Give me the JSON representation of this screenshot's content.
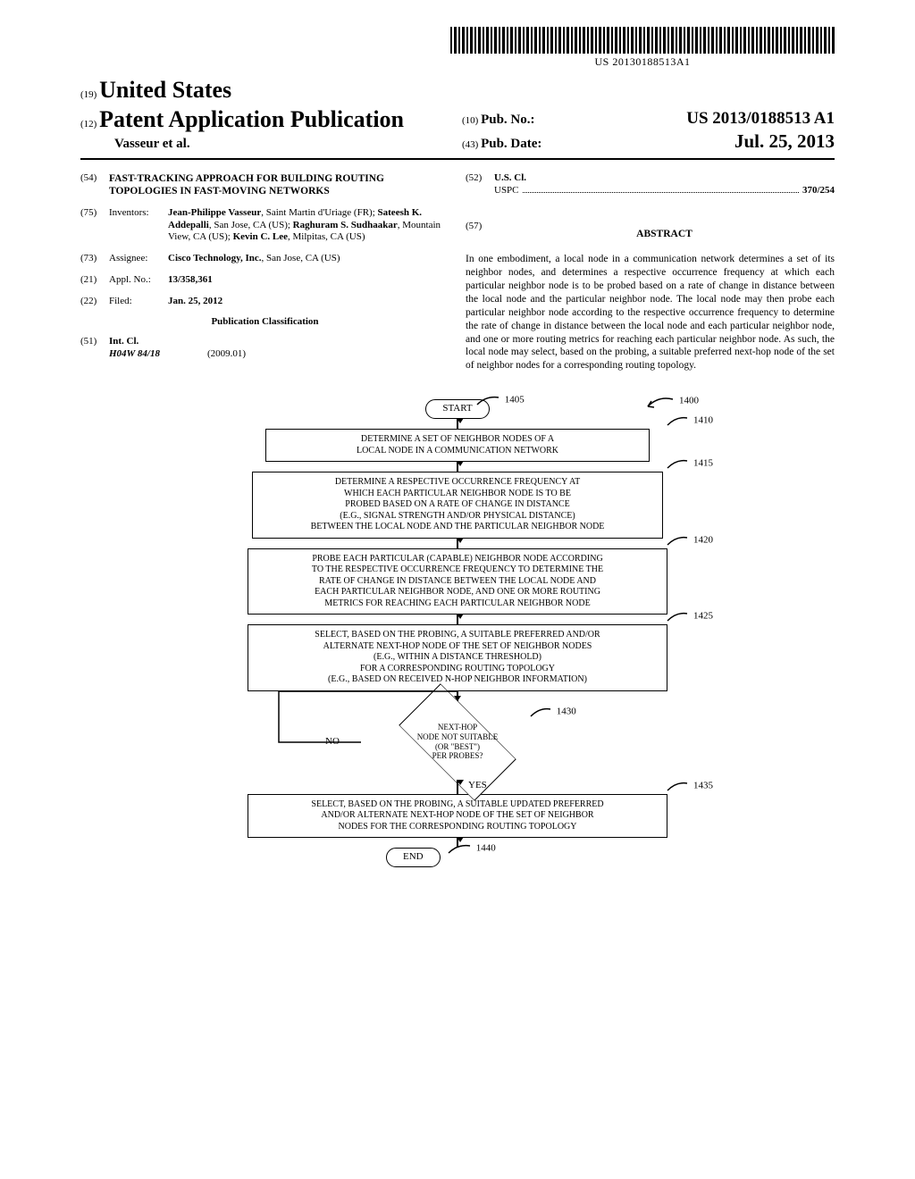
{
  "barcode_text": "US 20130188513A1",
  "header": {
    "country_code": "(19)",
    "country": "United States",
    "pub_code": "(12)",
    "pub_type": "Patent Application Publication",
    "authors": "Vasseur et al.",
    "pubno_code": "(10)",
    "pubno_label": "Pub. No.:",
    "pubno_value": "US 2013/0188513 A1",
    "pubdate_code": "(43)",
    "pubdate_label": "Pub. Date:",
    "pubdate_value": "Jul. 25, 2013"
  },
  "left_col": {
    "item54_code": "(54)",
    "item54_text": "FAST-TRACKING APPROACH FOR BUILDING ROUTING TOPOLOGIES IN FAST-MOVING NETWORKS",
    "item75_code": "(75)",
    "item75_label": "Inventors:",
    "item75_html": "Jean-Philippe Vasseur, Saint Martin d'Uriage (FR); Sateesh K. Addepalli, San Jose, CA (US); Raghuram S. Sudhaakar, Mountain View, CA (US); Kevin C. Lee, Milpitas, CA (US)",
    "item73_code": "(73)",
    "item73_label": "Assignee:",
    "item73_html": "Cisco Technology, Inc., San Jose, CA (US)",
    "item21_code": "(21)",
    "item21_label": "Appl. No.:",
    "item21_value": "13/358,361",
    "item22_code": "(22)",
    "item22_label": "Filed:",
    "item22_value": "Jan. 25, 2012",
    "pub_class": "Publication Classification",
    "item51_code": "(51)",
    "item51_label": "Int. Cl.",
    "item51_class": "H04W 84/18",
    "item51_edition": "(2009.01)"
  },
  "right_col": {
    "item52_code": "(52)",
    "item52_label": "U.S. Cl.",
    "item52_scheme": "USPC",
    "item52_value": "370/254",
    "item57_code": "(57)",
    "abstract_label": "ABSTRACT",
    "abstract_text": "In one embodiment, a local node in a communication network determines a set of its neighbor nodes, and determines a respective occurrence frequency at which each particular neighbor node is to be probed based on a rate of change in distance between the local node and the particular neighbor node. The local node may then probe each particular neighbor node according to the respective occurrence frequency to determine the rate of change in distance between the local node and each particular neighbor node, and one or more routing metrics for reaching each particular neighbor node. As such, the local node may select, based on the probing, a suitable preferred next-hop node of the set of neighbor nodes for a corresponding routing topology."
  },
  "flowchart": {
    "ref_1400": "1400",
    "ref_1405": "1405",
    "start": "START",
    "ref_1410": "1410",
    "box1410": "DETERMINE A SET OF NEIGHBOR NODES OF A\nLOCAL NODE IN A COMMUNICATION NETWORK",
    "ref_1415": "1415",
    "box1415": "DETERMINE A RESPECTIVE OCCURRENCE FREQUENCY AT\nWHICH EACH PARTICULAR NEIGHBOR NODE IS TO BE\nPROBED BASED ON A RATE OF CHANGE IN DISTANCE\n(E.G., SIGNAL STRENGTH AND/OR PHYSICAL DISTANCE)\nBETWEEN THE LOCAL NODE AND THE PARTICULAR NEIGHBOR NODE",
    "ref_1420": "1420",
    "box1420": "PROBE EACH PARTICULAR (CAPABLE) NEIGHBOR NODE ACCORDING\nTO THE RESPECTIVE OCCURRENCE FREQUENCY TO DETERMINE THE\nRATE OF CHANGE IN DISTANCE BETWEEN THE LOCAL NODE AND\nEACH PARTICULAR NEIGHBOR NODE, AND ONE OR MORE ROUTING\nMETRICS FOR REACHING EACH PARTICULAR NEIGHBOR NODE",
    "ref_1425": "1425",
    "box1425": "SELECT, BASED ON THE PROBING, A SUITABLE PREFERRED AND/OR\nALTERNATE NEXT-HOP NODE OF THE SET OF NEIGHBOR NODES\n(E.G., WITHIN A DISTANCE THRESHOLD)\nFOR A CORRESPONDING ROUTING TOPOLOGY\n(E.G., BASED ON RECEIVED N-HOP NEIGHBOR INFORMATION)",
    "ref_1430": "1430",
    "diamond": "NEXT-HOP\nNODE NOT SUITABLE\n(OR \"BEST\")\nPER PROBES?",
    "no_label": "NO",
    "yes_label": "YES",
    "ref_1435": "1435",
    "box1435": "SELECT, BASED ON THE PROBING, A SUITABLE UPDATED PREFERRED\nAND/OR ALTERNATE NEXT-HOP NODE OF THE SET OF NEIGHBOR\nNODES FOR THE CORRESPONDING ROUTING TOPOLOGY",
    "ref_1440": "1440",
    "end": "END"
  }
}
